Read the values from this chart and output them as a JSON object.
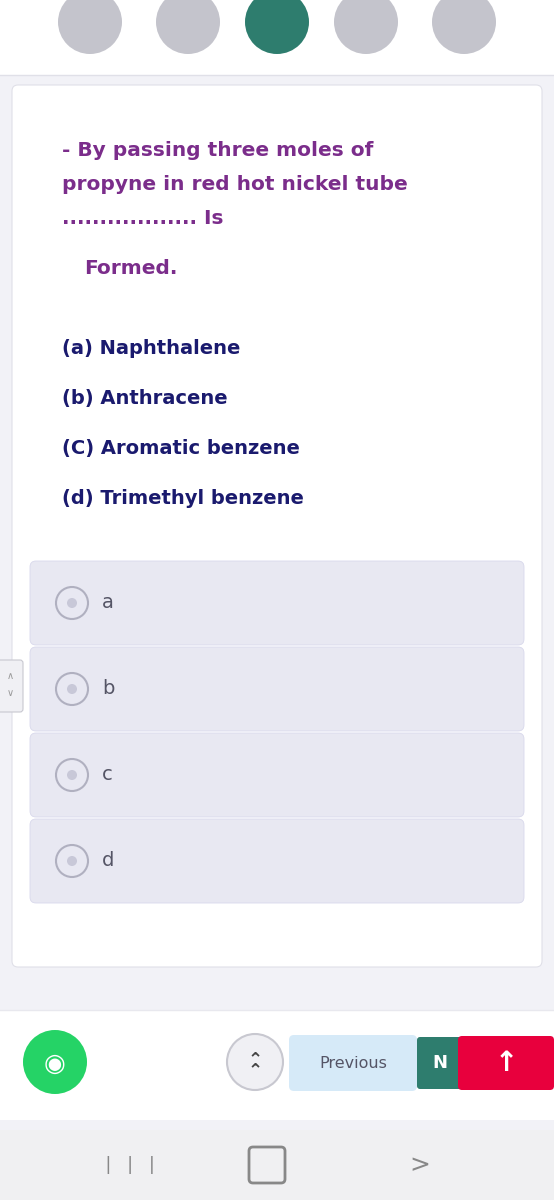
{
  "bg_color": "#f2f2f7",
  "card_bg": "#ffffff",
  "card_border": "#e0e0e8",
  "question_color": "#7b2d8b",
  "options_color": "#1a1a6e",
  "formed_color": "#7b2d8b",
  "question_line1": "- By passing three moles of",
  "question_line2": "propyne in red hot nickel tube",
  "question_line3": ".................. Is",
  "question_line4": "Formed.",
  "options": [
    "(a) Naphthalene",
    "(b) Anthracene",
    "(C) Aromatic benzene",
    "(d) Trimethyl benzene"
  ],
  "answer_choices": [
    "a",
    "b",
    "c",
    "d"
  ],
  "answer_box_bg": "#e8e8f2",
  "answer_box_border": "#d8d8ec",
  "radio_border": "#b0b0c0",
  "radio_fill": "#e8e8f2",
  "radio_inner": "#c8c8d8",
  "nav_bar_bg": "#ffffff",
  "previous_btn_bg": "#d6eaf8",
  "previous_btn_color": "#555566",
  "next_btn_bg": "#2e7d6e",
  "next_btn_color": "#ffffff",
  "up_btn_bg": "#e8003d",
  "up_btn_color": "#ffffff",
  "whatsapp_btn_bg": "#25d366",
  "top_circles_colors": [
    "#c4c4cc",
    "#c4c4cc",
    "#2e7d6e",
    "#c4c4cc",
    "#c4c4cc"
  ],
  "bottom_bar_bg": "#f0f0f2",
  "side_arrow_color": "#999999",
  "scroll_btn_bg": "#f0f0f4",
  "scroll_btn_border": "#c8c8d0",
  "label_color": "#555566"
}
